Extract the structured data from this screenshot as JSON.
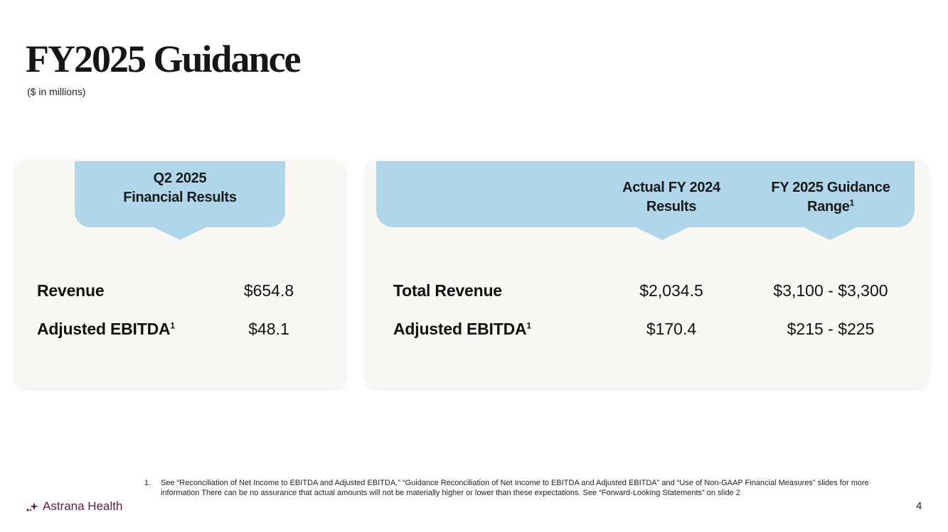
{
  "header": {
    "title": "FY2025 Guidance",
    "subtitle": "($ in millions)"
  },
  "left_card": {
    "tab_line1": "Q2 2025",
    "tab_line2": "Financial Results",
    "rows": [
      {
        "label": "Revenue",
        "sup": "",
        "value": "$654.8"
      },
      {
        "label": "Adjusted EBITDA",
        "sup": "1",
        "value": "$48.1"
      }
    ]
  },
  "right_card": {
    "col1_line1": "Actual FY 2024",
    "col1_line2": "Results",
    "col2_line1": "FY 2025 Guidance",
    "col2_line2": "Range",
    "col2_sup": "1",
    "rows": [
      {
        "label": "Total Revenue",
        "sup": "",
        "actual": "$2,034.5",
        "guidance": "$3,100 - $3,300"
      },
      {
        "label": "Adjusted EBITDA",
        "sup": "1",
        "actual": "$170.4",
        "guidance": "$215 - $225"
      }
    ]
  },
  "footer": {
    "footnote_number": "1.",
    "footnote_text": "See “Reconciliation of Net Income to EBITDA and Adjusted EBITDA,” “Guidance Reconciliation of Net Income to EBITDA and Adjusted EBITDA” and “Use of Non-GAAP Financial Measures” slides for more information There can be no assurance that actual amounts will not be materially higher or lower than these expectations. See “Forward-Looking Statements” on slide 2",
    "logo_text": "Astrana Health",
    "logo_icon": "astrana-sparkle-icon",
    "page_number": "4"
  },
  "colors": {
    "tab_blue": "#b0d6ea",
    "card_bg": "#faf8f4",
    "brand_purple": "#5a1e47"
  }
}
